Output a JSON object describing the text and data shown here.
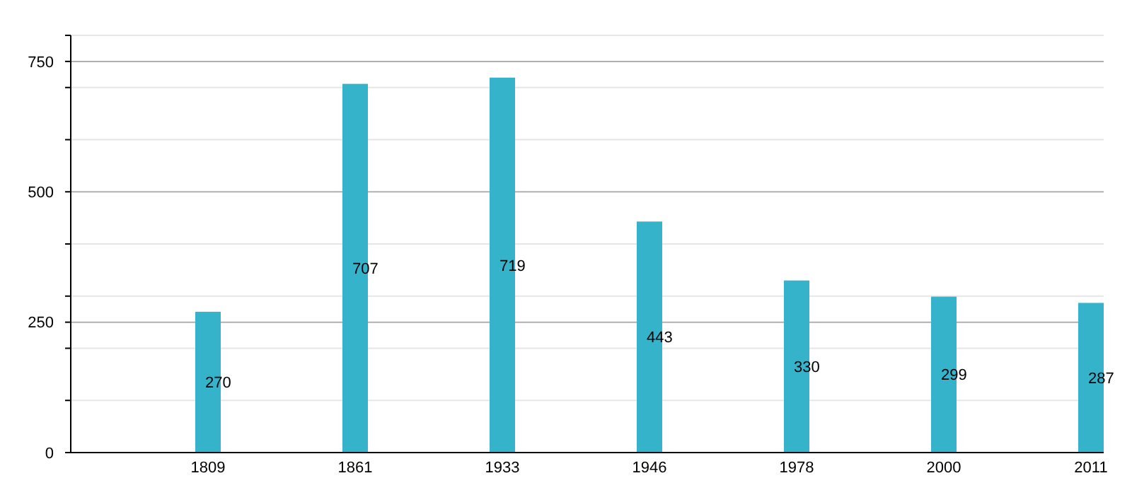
{
  "chart_data": {
    "type": "bar",
    "categories": [
      "1809",
      "1861",
      "1933",
      "1946",
      "1978",
      "2000",
      "2011"
    ],
    "values": [
      270,
      707,
      719,
      443,
      330,
      299,
      287
    ],
    "color": "#35b3cb",
    "data_labels": true,
    "ylim": [
      0,
      800
    ],
    "yticks": [
      0,
      {
        "value": 100,
        "label": null
      },
      {
        "value": 200,
        "label": null
      },
      250,
      {
        "value": 300,
        "label": null
      },
      {
        "value": 400,
        "label": null
      },
      500,
      {
        "value": 600,
        "label": null
      },
      {
        "value": 700,
        "label": null
      },
      750,
      {
        "value": 800,
        "label": null
      }
    ],
    "grid": "y"
  }
}
